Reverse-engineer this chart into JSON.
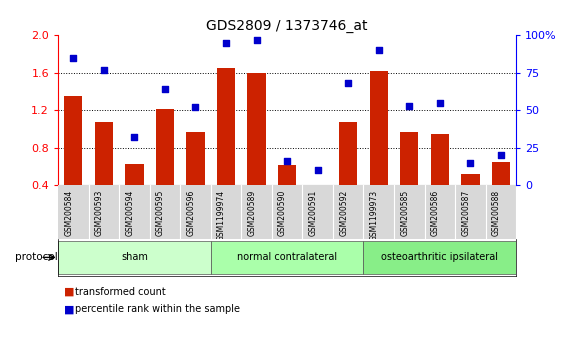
{
  "title": "GDS2809 / 1373746_at",
  "samples": [
    "GSM200584",
    "GSM200593",
    "GSM200594",
    "GSM200595",
    "GSM200596",
    "GSM1199974",
    "GSM200589",
    "GSM200590",
    "GSM200591",
    "GSM200592",
    "GSM1199973",
    "GSM200585",
    "GSM200586",
    "GSM200587",
    "GSM200588"
  ],
  "transformed_count": [
    1.35,
    1.07,
    0.63,
    1.21,
    0.97,
    1.65,
    1.6,
    0.62,
    0.4,
    1.07,
    1.62,
    0.97,
    0.95,
    0.52,
    0.65
  ],
  "percentile_rank": [
    85,
    77,
    32,
    64,
    52,
    95,
    97,
    16,
    10,
    68,
    90,
    53,
    55,
    15,
    20
  ],
  "groups": [
    {
      "label": "sham",
      "start": 0,
      "end": 4
    },
    {
      "label": "normal contralateral",
      "start": 5,
      "end": 9
    },
    {
      "label": "osteoarthritic ipsilateral",
      "start": 10,
      "end": 14
    }
  ],
  "group_colors": [
    "#ccffcc",
    "#aaffaa",
    "#88ee88"
  ],
  "bar_color": "#cc2200",
  "dot_color": "#0000cc",
  "left_ylim": [
    0.4,
    2.0
  ],
  "left_yticks": [
    0.4,
    0.8,
    1.2,
    1.6,
    2.0
  ],
  "right_ylim": [
    0,
    100
  ],
  "right_yticks": [
    0,
    25,
    50,
    75,
    100
  ],
  "right_yticklabels": [
    "0",
    "25",
    "50",
    "75",
    "100%"
  ],
  "legend_tc": "transformed count",
  "legend_pr": "percentile rank within the sample",
  "protocol_label": "protocol"
}
